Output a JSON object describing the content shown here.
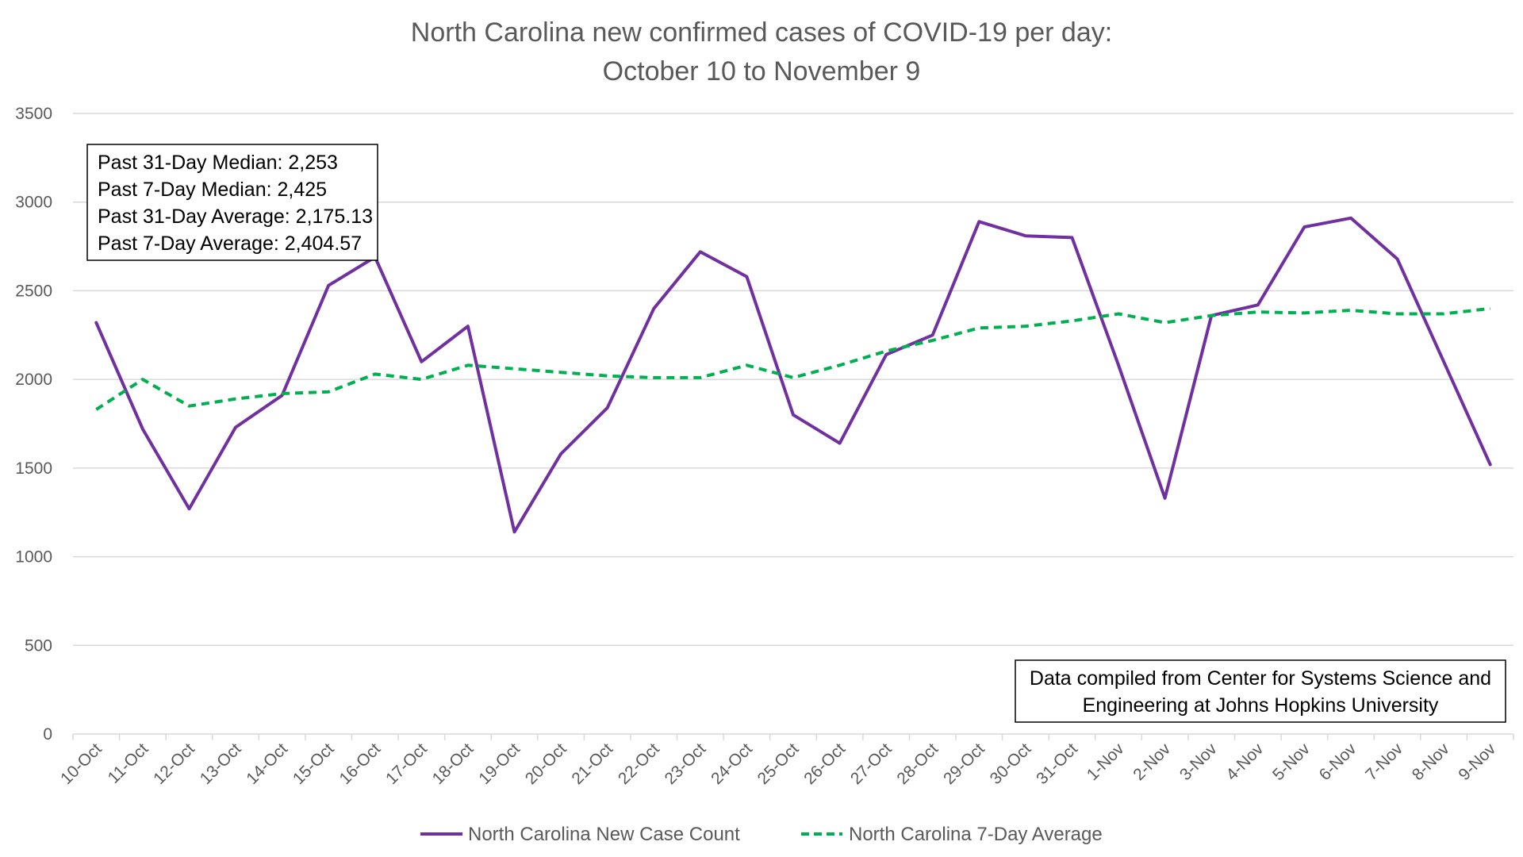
{
  "chart_data": {
    "type": "line",
    "title_line1": "North Carolina new confirmed cases of COVID-19 per day:",
    "title_line2": "October 10 to November 9",
    "categories": [
      "10-Oct",
      "11-Oct",
      "12-Oct",
      "13-Oct",
      "14-Oct",
      "15-Oct",
      "16-Oct",
      "17-Oct",
      "18-Oct",
      "19-Oct",
      "20-Oct",
      "21-Oct",
      "22-Oct",
      "23-Oct",
      "24-Oct",
      "25-Oct",
      "26-Oct",
      "27-Oct",
      "28-Oct",
      "29-Oct",
      "30-Oct",
      "31-Oct",
      "1-Nov",
      "2-Nov",
      "3-Nov",
      "4-Nov",
      "5-Nov",
      "6-Nov",
      "7-Nov",
      "8-Nov",
      "9-Nov"
    ],
    "ylim": [
      0,
      3500
    ],
    "yticks": [
      0,
      500,
      1000,
      1500,
      2000,
      2500,
      3000,
      3500
    ],
    "grid": true,
    "legend_position": "bottom",
    "series": [
      {
        "name": "North Carolina New Case Count",
        "color": "#7030A0",
        "style": "solid",
        "values": [
          2320,
          1720,
          1270,
          1730,
          1910,
          2530,
          2690,
          2100,
          2300,
          1140,
          1580,
          1840,
          2400,
          2720,
          2580,
          1800,
          1640,
          2140,
          2250,
          2890,
          2810,
          2800,
          2080,
          1330,
          2360,
          2420,
          2860,
          2910,
          2680,
          2100,
          1520
        ]
      },
      {
        "name": "North Carolina 7-Day Average",
        "color": "#00B050",
        "style": "dashed",
        "values": [
          1830,
          2000,
          1850,
          1890,
          1920,
          1930,
          2030,
          2000,
          2080,
          2060,
          2040,
          2020,
          2010,
          2010,
          2080,
          2010,
          2080,
          2160,
          2220,
          2290,
          2300,
          2330,
          2370,
          2320,
          2360,
          2380,
          2375,
          2390,
          2370,
          2370,
          2400
        ]
      }
    ],
    "annotations": {
      "stats_box": [
        "Past 31-Day Median: 2,253",
        "Past 7-Day Median: 2,425",
        "Past 31-Day Average: 2,175.13",
        "Past 7-Day Average: 2,404.57"
      ],
      "source_box": [
        "Data compiled from Center for Systems Science and",
        "Engineering at Johns Hopkins University"
      ]
    },
    "colors": {
      "axis_text": "#595959",
      "gridline": "#D9D9D9",
      "new_case": "#7030A0",
      "seven_day": "#00B050"
    }
  }
}
